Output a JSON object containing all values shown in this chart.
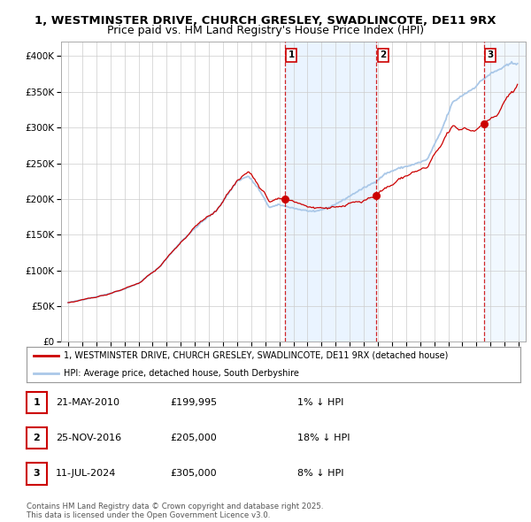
{
  "title_line1": "1, WESTMINSTER DRIVE, CHURCH GRESLEY, SWADLINCOTE, DE11 9RX",
  "title_line2": "Price paid vs. HM Land Registry's House Price Index (HPI)",
  "property_label": "1, WESTMINSTER DRIVE, CHURCH GRESLEY, SWADLINCOTE, DE11 9RX (detached house)",
  "hpi_label": "HPI: Average price, detached house, South Derbyshire",
  "sale_events": [
    {
      "num": 1,
      "date": "21-MAY-2010",
      "price": 199995,
      "pct": "1%",
      "dir": "↓"
    },
    {
      "num": 2,
      "date": "25-NOV-2016",
      "price": 205000,
      "pct": "18%",
      "dir": "↓"
    },
    {
      "num": 3,
      "date": "11-JUL-2024",
      "price": 305000,
      "pct": "8%",
      "dir": "↓"
    }
  ],
  "sale_years": [
    2010.38,
    2016.9,
    2024.52
  ],
  "sale_prices": [
    199995,
    205000,
    305000
  ],
  "copyright": "Contains HM Land Registry data © Crown copyright and database right 2025.\nThis data is licensed under the Open Government Licence v3.0.",
  "background_color": "#ffffff",
  "grid_color": "#cccccc",
  "hpi_line_color": "#aac8e8",
  "property_line_color": "#cc0000",
  "sale_marker_color": "#cc0000",
  "vline_color": "#cc0000",
  "shade_color": "#ddeeff",
  "ylim": [
    0,
    420000
  ],
  "xlim_start": 1994.5,
  "xlim_end": 2027.5,
  "title_fontsize": 9.5,
  "subtitle_fontsize": 9,
  "axis_fontsize": 7.5
}
